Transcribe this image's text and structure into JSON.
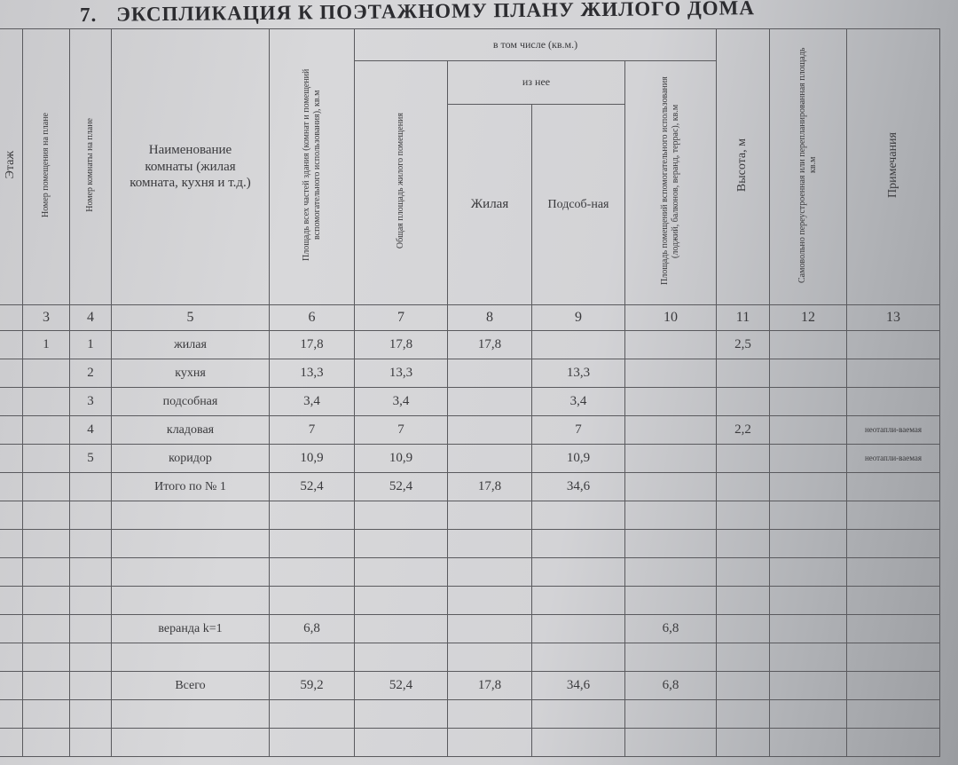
{
  "title": {
    "number": "7.",
    "text": "ЭКСПЛИКАЦИЯ К ПОЭТАЖНОМУ ПЛАНУ ЖИЛОГО ДОМА"
  },
  "headers": {
    "floor": "Этаж",
    "premise_no": "Номер помещения на плане",
    "room_no": "Номер комнаты на плане",
    "room_name": "Наименование комнаты (жилая комната, кухня и т.д.)",
    "area_all": "Площадь всех частей здания (комнат и помещений вспомогательного использования), кв.м",
    "including": "в том числе (кв.м.)",
    "total_living_area": "Общая площадь жилого помещения",
    "of_which": "из нее",
    "living": "Жилая",
    "auxiliary": "Подсоб-ная",
    "aux_use_area": "Площадь помещений вспомогательного использования (лоджий, балконов, веранд, террас), кв.м",
    "height": "Высота, м",
    "unauthorized": "Самовольно переустроенная или перепланированная площадь кв.м",
    "notes": "Примечания"
  },
  "column_numbers": [
    "3",
    "4",
    "5",
    "6",
    "7",
    "8",
    "9",
    "10",
    "11",
    "12",
    "13"
  ],
  "rows": [
    [
      "1",
      "1",
      "жилая",
      "17,8",
      "17,8",
      "17,8",
      "",
      "",
      "2,5",
      "",
      ""
    ],
    [
      "",
      "2",
      "кухня",
      "13,3",
      "13,3",
      "",
      "13,3",
      "",
      "",
      "",
      ""
    ],
    [
      "",
      "3",
      "подсобная",
      "3,4",
      "3,4",
      "",
      "3,4",
      "",
      "",
      "",
      ""
    ],
    [
      "",
      "4",
      "кладовая",
      "7",
      "7",
      "",
      "7",
      "",
      "2,2",
      "",
      "неотапли-ваемая"
    ],
    [
      "",
      "5",
      "коридор",
      "10,9",
      "10,9",
      "",
      "10,9",
      "",
      "",
      "",
      "неотапли-ваемая"
    ],
    [
      "",
      "",
      "Итого по № 1",
      "52,4",
      "52,4",
      "17,8",
      "34,6",
      "",
      "",
      "",
      ""
    ],
    [
      "",
      "",
      "",
      "",
      "",
      "",
      "",
      "",
      "",
      "",
      ""
    ],
    [
      "",
      "",
      "",
      "",
      "",
      "",
      "",
      "",
      "",
      "",
      ""
    ],
    [
      "",
      "",
      "",
      "",
      "",
      "",
      "",
      "",
      "",
      "",
      ""
    ],
    [
      "",
      "",
      "",
      "",
      "",
      "",
      "",
      "",
      "",
      "",
      ""
    ],
    [
      "",
      "",
      "веранда  k=1",
      "6,8",
      "",
      "",
      "",
      "6,8",
      "",
      "",
      ""
    ],
    [
      "",
      "",
      "",
      "",
      "",
      "",
      "",
      "",
      "",
      "",
      ""
    ],
    [
      "",
      "",
      "Всего",
      "59,2",
      "52,4",
      "17,8",
      "34,6",
      "6,8",
      "",
      "",
      ""
    ],
    [
      "",
      "",
      "",
      "",
      "",
      "",
      "",
      "",
      "",
      "",
      ""
    ],
    [
      "",
      "",
      "",
      "",
      "",
      "",
      "",
      "",
      "",
      "",
      ""
    ]
  ]
}
